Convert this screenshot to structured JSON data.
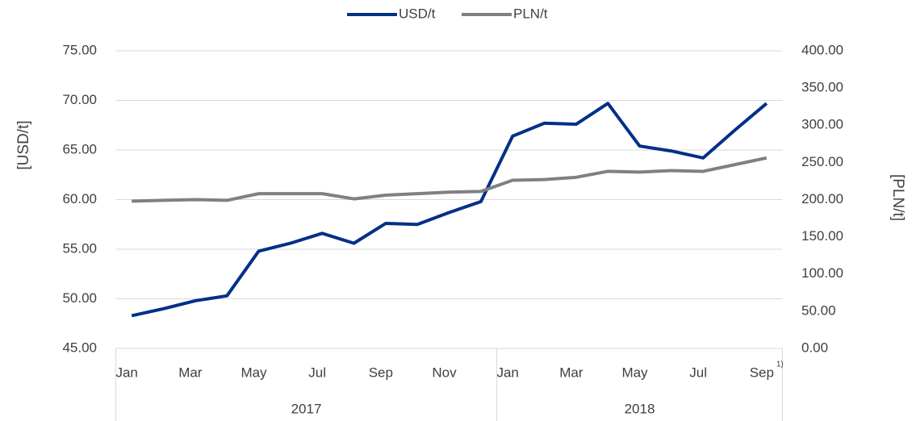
{
  "chart_data": {
    "type": "line",
    "categories": [
      "Jan",
      null,
      "Mar",
      null,
      "May",
      null,
      "Jul",
      null,
      "Sep",
      null,
      "Nov",
      null,
      "Jan",
      null,
      "Mar",
      null,
      "May",
      null,
      "Jul",
      null,
      "Sep"
    ],
    "x_groups": [
      "2017",
      "2018"
    ],
    "series": [
      {
        "name": "USD/t",
        "color": "#003087",
        "values": [
          48.3,
          49.0,
          49.8,
          50.3,
          54.8,
          55.6,
          56.6,
          55.6,
          57.6,
          57.5,
          58.7,
          59.8,
          66.4,
          67.7,
          67.6,
          69.7,
          65.4,
          64.9,
          64.2,
          67.0,
          69.7
        ]
      },
      {
        "name": "PLN/t",
        "color": "#808080",
        "axis": "y2",
        "values": [
          198,
          199,
          200,
          199,
          208,
          208,
          208,
          201,
          206,
          208,
          210,
          211,
          226,
          227,
          230,
          238,
          237,
          239,
          238,
          247,
          256
        ]
      }
    ],
    "ylabel": "[USD/t]",
    "y2label": "[PLN/t]",
    "annotation": "1)",
    "ylim": [
      45,
      75
    ],
    "yticks": [
      {
        "value": 45,
        "label": "45.00"
      },
      {
        "value": 50,
        "label": "50.00"
      },
      {
        "value": 55,
        "label": "55.00"
      },
      {
        "value": 60,
        "label": "60.00"
      },
      {
        "value": 65,
        "label": "65.00"
      },
      {
        "value": 70,
        "label": "70.00"
      },
      {
        "value": 75,
        "label": "75.00"
      }
    ],
    "y2lim": [
      0,
      400
    ],
    "y2ticks": [
      {
        "value": 0,
        "label": "0.00"
      },
      {
        "value": 50,
        "label": "50.00"
      },
      {
        "value": 100,
        "label": "100.00"
      },
      {
        "value": 150,
        "label": "150.00"
      },
      {
        "value": 200,
        "label": "200.00"
      },
      {
        "value": 250,
        "label": "250.00"
      },
      {
        "value": 300,
        "label": "300.00"
      },
      {
        "value": 350,
        "label": "350.00"
      },
      {
        "value": 400,
        "label": "400.00"
      }
    ],
    "grid": true,
    "legend": "top"
  }
}
